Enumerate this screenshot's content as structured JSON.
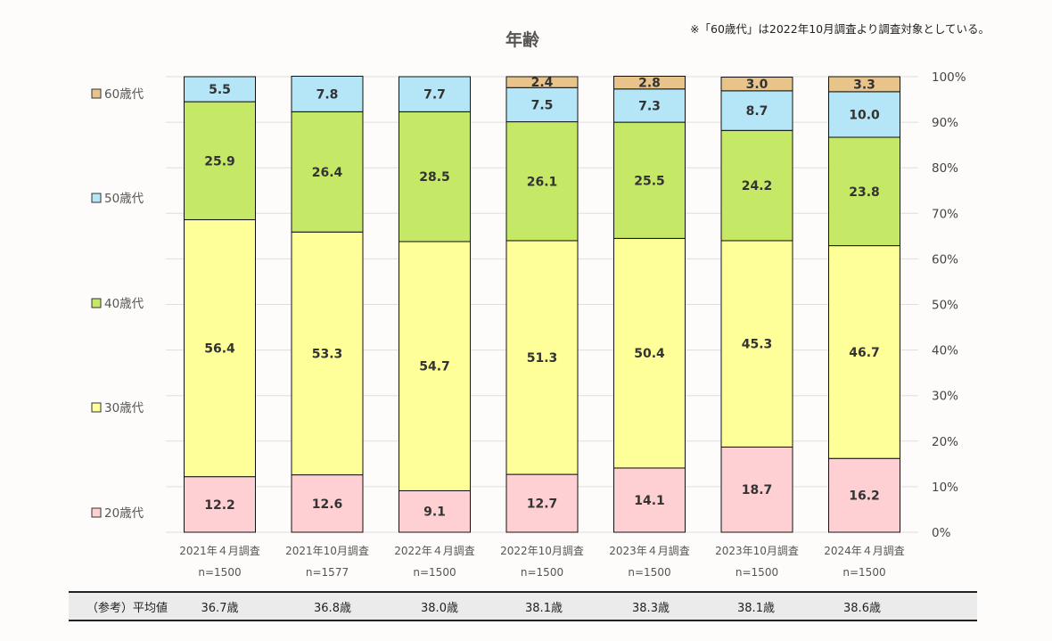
{
  "note": "※「60歳代」は2022年10月調査より調査対象としている。",
  "chart_data": {
    "type": "bar",
    "stacked": true,
    "percent_stacked": true,
    "title": "年齢",
    "categories": [
      "2021年４月調査",
      "2021年10月調査",
      "2022年４月調査",
      "2022年10月調査",
      "2023年４月調査",
      "2023年10月調査",
      "2024年４月調査"
    ],
    "sample_sizes": [
      "n=1500",
      "n=1577",
      "n=1500",
      "n=1500",
      "n=1500",
      "n=1500",
      "n=1500"
    ],
    "series": [
      {
        "name": "20歳代",
        "color": "#ffd0d3",
        "values": [
          12.2,
          12.6,
          9.1,
          12.7,
          14.1,
          18.7,
          16.2
        ]
      },
      {
        "name": "30歳代",
        "color": "#ffff99",
        "values": [
          56.4,
          53.3,
          54.7,
          51.3,
          50.4,
          45.3,
          46.7
        ]
      },
      {
        "name": "40歳代",
        "color": "#c6e867",
        "values": [
          25.9,
          26.4,
          28.5,
          26.1,
          25.5,
          24.2,
          23.8
        ]
      },
      {
        "name": "50歳代",
        "color": "#b4e6f8",
        "values": [
          5.5,
          7.8,
          7.7,
          7.5,
          7.3,
          8.7,
          10.0
        ]
      },
      {
        "name": "60歳代",
        "color": "#e8c48a",
        "values": [
          null,
          null,
          null,
          2.4,
          2.8,
          3.0,
          3.3
        ]
      }
    ],
    "y_axis": {
      "side": "right",
      "ylim": [
        0,
        100
      ],
      "ticks": [
        "0%",
        "10%",
        "20%",
        "30%",
        "40%",
        "50%",
        "60%",
        "70%",
        "80%",
        "90%",
        "100%"
      ]
    },
    "grid": true,
    "legend_position": "left",
    "average_row": {
      "label": "（参考）平均値",
      "values": [
        "36.7歳",
        "36.8歳",
        "38.0歳",
        "38.1歳",
        "38.3歳",
        "38.1歳",
        "38.6歳"
      ]
    }
  }
}
